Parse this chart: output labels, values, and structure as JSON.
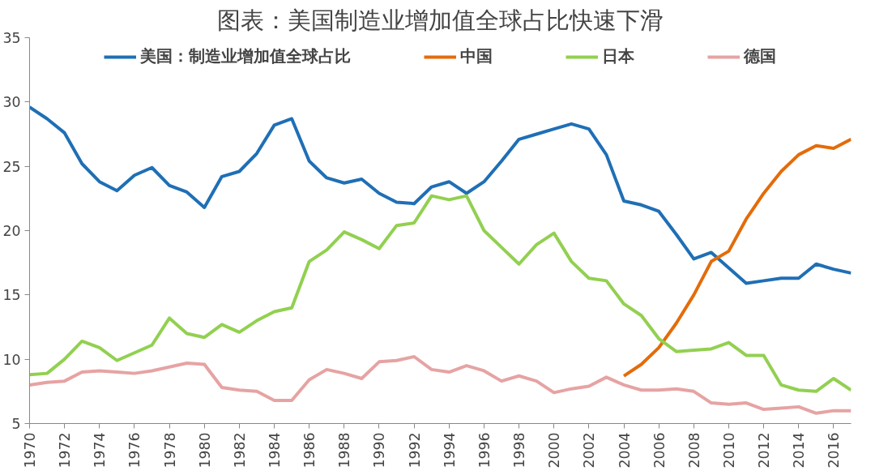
{
  "chart_data": {
    "type": "line",
    "title": "图表：美国制造业增加值全球占比快速下滑",
    "x": [
      1970,
      1971,
      1972,
      1973,
      1974,
      1975,
      1976,
      1977,
      1978,
      1979,
      1980,
      1981,
      1982,
      1983,
      1984,
      1985,
      1986,
      1987,
      1988,
      1989,
      1990,
      1991,
      1992,
      1993,
      1994,
      1995,
      1996,
      1997,
      1998,
      1999,
      2000,
      2001,
      2002,
      2003,
      2004,
      2005,
      2006,
      2007,
      2008,
      2009,
      2010,
      2011,
      2012,
      2013,
      2014,
      2015,
      2016,
      2017
    ],
    "series": [
      {
        "name": "美国：制造业增加值全球占比",
        "color": "#1f6fb5",
        "values": [
          29.6,
          28.7,
          27.6,
          25.2,
          23.8,
          23.1,
          24.3,
          24.9,
          23.5,
          23.0,
          21.8,
          24.2,
          24.6,
          26.0,
          28.2,
          28.7,
          25.4,
          24.1,
          23.7,
          24.0,
          22.9,
          22.2,
          22.1,
          23.4,
          23.8,
          22.9,
          23.8,
          25.4,
          27.1,
          27.5,
          27.9,
          28.3,
          27.9,
          25.9,
          22.3,
          22.0,
          21.5,
          19.7,
          17.8,
          18.3,
          17.1,
          15.9,
          16.1,
          16.3,
          16.3,
          17.4,
          17.0,
          16.7
        ]
      },
      {
        "name": "中国",
        "color": "#e36c0a",
        "values": [
          null,
          null,
          null,
          null,
          null,
          null,
          null,
          null,
          null,
          null,
          null,
          null,
          null,
          null,
          null,
          null,
          null,
          null,
          null,
          null,
          null,
          null,
          null,
          null,
          null,
          null,
          null,
          null,
          null,
          null,
          null,
          null,
          null,
          null,
          8.7,
          9.6,
          10.9,
          12.8,
          15.0,
          17.6,
          18.4,
          20.9,
          22.9,
          24.6,
          25.9,
          26.6,
          26.4,
          27.1
        ]
      },
      {
        "name": "日本",
        "color": "#92d050",
        "values": [
          8.8,
          8.9,
          10.0,
          11.4,
          10.9,
          9.9,
          10.5,
          11.1,
          13.2,
          12.0,
          11.7,
          12.7,
          12.1,
          13.0,
          13.7,
          14.0,
          17.6,
          18.5,
          19.9,
          19.3,
          18.6,
          20.4,
          20.6,
          22.7,
          22.4,
          22.7,
          20.0,
          18.7,
          17.4,
          18.9,
          19.8,
          17.6,
          16.3,
          16.1,
          14.3,
          13.4,
          11.6,
          10.6,
          10.7,
          10.8,
          11.3,
          10.3,
          10.3,
          8.0,
          7.6,
          7.5,
          8.5,
          7.6
        ]
      },
      {
        "name": "德国",
        "color": "#e6a3a3",
        "values": [
          8.0,
          8.2,
          8.3,
          9.0,
          9.1,
          9.0,
          8.9,
          9.1,
          9.4,
          9.7,
          9.6,
          7.8,
          7.6,
          7.5,
          6.8,
          6.8,
          8.4,
          9.2,
          8.9,
          8.5,
          9.8,
          9.9,
          10.2,
          9.2,
          9.0,
          9.5,
          9.1,
          8.3,
          8.7,
          8.3,
          7.4,
          7.7,
          7.9,
          8.6,
          8.0,
          7.6,
          7.6,
          7.7,
          7.5,
          6.6,
          6.5,
          6.6,
          6.1,
          6.2,
          6.3,
          5.8,
          6.0,
          6.0
        ]
      }
    ],
    "xlim": [
      1970,
      2017
    ],
    "xticks": [
      1970,
      1972,
      1974,
      1976,
      1978,
      1980,
      1982,
      1984,
      1986,
      1988,
      1990,
      1992,
      1994,
      1996,
      1998,
      2000,
      2002,
      2004,
      2006,
      2008,
      2010,
      2012,
      2014,
      2016
    ],
    "ylim": [
      5,
      35
    ],
    "yticks": [
      5,
      10,
      15,
      20,
      25,
      30,
      35
    ],
    "grid": false,
    "legend": "top",
    "marker": "none",
    "line_style": "solid"
  }
}
